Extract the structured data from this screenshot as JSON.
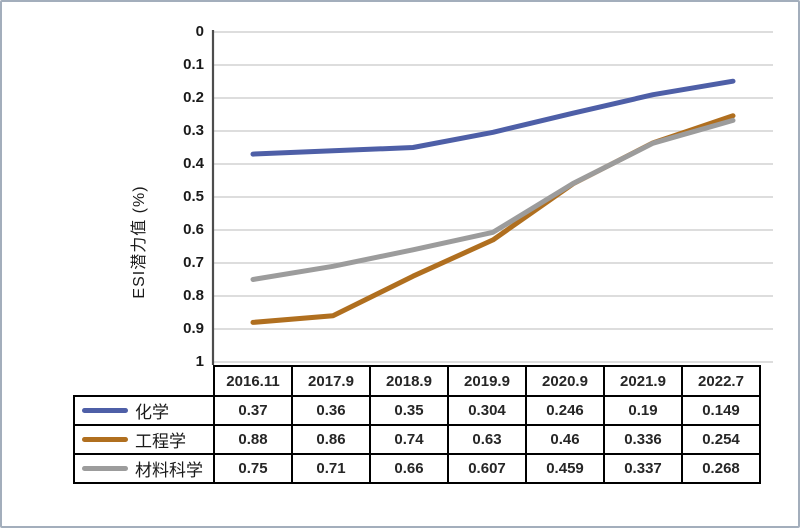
{
  "chart_data": {
    "type": "line",
    "title": "",
    "xlabel": "",
    "ylabel": "ESI潜力值 (%)",
    "categories": [
      "2016.11",
      "2017.9",
      "2018.9",
      "2019.9",
      "2020.9",
      "2021.9",
      "2022.7"
    ],
    "series": [
      {
        "id": "chemistry",
        "name": "化学",
        "color": "#4E5FA7",
        "values": [
          0.37,
          0.36,
          0.35,
          0.304,
          0.246,
          0.19,
          0.149
        ]
      },
      {
        "id": "engineering",
        "name": "工程学",
        "color": "#B06F1F",
        "values": [
          0.88,
          0.86,
          0.74,
          0.63,
          0.46,
          0.336,
          0.254
        ]
      },
      {
        "id": "materials-science",
        "name": "材料科学",
        "color": "#9C9C9C",
        "values": [
          0.75,
          0.71,
          0.66,
          0.607,
          0.459,
          0.337,
          0.268
        ]
      }
    ],
    "y_axis": {
      "min": 0,
      "max": 1,
      "step": 0.1,
      "inverted": true,
      "tick_labels": [
        "0",
        "0.1",
        "0.2",
        "0.3",
        "0.4",
        "0.5",
        "0.6",
        "0.7",
        "0.8",
        "0.9",
        "1"
      ]
    },
    "grid": true,
    "legend_position": "table-left"
  },
  "table": {
    "header": [
      "2016.11",
      "2017.9",
      "2018.9",
      "2019.9",
      "2020.9",
      "2021.9",
      "2022.7"
    ],
    "rows": [
      {
        "label": "化学",
        "values": [
          "0.37",
          "0.36",
          "0.35",
          "0.304",
          "0.246",
          "0.19",
          "0.149"
        ]
      },
      {
        "label": "工程学",
        "values": [
          "0.88",
          "0.86",
          "0.74",
          "0.63",
          "0.46",
          "0.336",
          "0.254"
        ]
      },
      {
        "label": "材料科学",
        "values": [
          "0.75",
          "0.71",
          "0.66",
          "0.607",
          "0.459",
          "0.337",
          "0.268"
        ]
      }
    ]
  },
  "colors": {
    "frame_border": "#A3AEBC",
    "table_border": "#000000",
    "gridline": "#D2D2D2",
    "axis_line": "#4D4D4D",
    "series_blue": "#4E5FA7",
    "series_orange": "#B06F1F",
    "series_gray": "#9C9C9C"
  }
}
